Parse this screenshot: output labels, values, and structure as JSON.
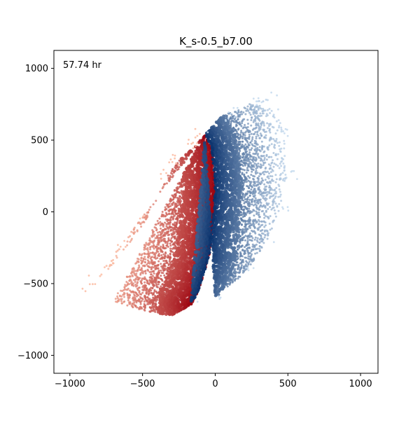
{
  "chart_data": {
    "type": "scatter",
    "title": "K_s-0.5_b7.00",
    "annotation": "57.74 hr",
    "xlim": [
      -1110,
      1120
    ],
    "ylim": [
      -1125,
      1125
    ],
    "x_ticks": [
      -1000,
      -500,
      0,
      500,
      1000
    ],
    "y_ticks": [
      -1000,
      -500,
      0,
      500,
      1000
    ],
    "x_tick_labels": [
      "−1000",
      "−500",
      "0",
      "500",
      "1000"
    ],
    "y_tick_labels": [
      "−1000",
      "−500",
      "0",
      "500",
      "1000"
    ],
    "grid": false,
    "legend": "none",
    "colormaps": {
      "negative_side": "Reds",
      "positive_side": "Blues"
    },
    "series": [
      {
        "side": "negative_x",
        "color_dark": "#99000d",
        "color_light": "#fcbba1",
        "region": {
          "inner_edge": [
            [
              -70,
              540
            ],
            [
              -25,
              450
            ],
            [
              0,
              200
            ],
            [
              -10,
              0
            ],
            [
              -40,
              -300
            ],
            [
              -120,
              -560
            ],
            [
              -170,
              -650
            ]
          ],
          "outer_edge": [
            [
              -870,
              -530
            ],
            [
              -800,
              -470
            ],
            [
              -700,
              -360
            ],
            [
              -600,
              -230
            ],
            [
              -450,
              -20
            ],
            [
              -320,
              270
            ],
            [
              -250,
              360
            ],
            [
              -120,
              470
            ],
            [
              -70,
              540
            ]
          ],
          "bottom_edge": [
            [
              -870,
              -530
            ],
            [
              -700,
              -620
            ],
            [
              -500,
              -690
            ],
            [
              -300,
              -720
            ],
            [
              -170,
              -650
            ]
          ]
        }
      },
      {
        "side": "positive_x",
        "color_dark": "#08306b",
        "color_light": "#c6dbef",
        "region": {
          "inner_edge": [
            [
              -170,
              -650
            ],
            [
              -120,
              -560
            ],
            [
              -40,
              -300
            ],
            [
              -10,
              0
            ],
            [
              0,
              200
            ],
            [
              -25,
              450
            ],
            [
              -70,
              540
            ]
          ],
          "outer_edge": [
            [
              -170,
              -650
            ],
            [
              0,
              -600
            ],
            [
              200,
              -430
            ],
            [
              350,
              -220
            ],
            [
              450,
              30
            ],
            [
              500,
              250
            ],
            [
              470,
              560
            ],
            [
              430,
              680
            ],
            [
              360,
              800
            ],
            [
              250,
              760
            ],
            [
              120,
              700
            ],
            [
              40,
              660
            ],
            [
              -70,
              540
            ]
          ]
        }
      }
    ]
  }
}
